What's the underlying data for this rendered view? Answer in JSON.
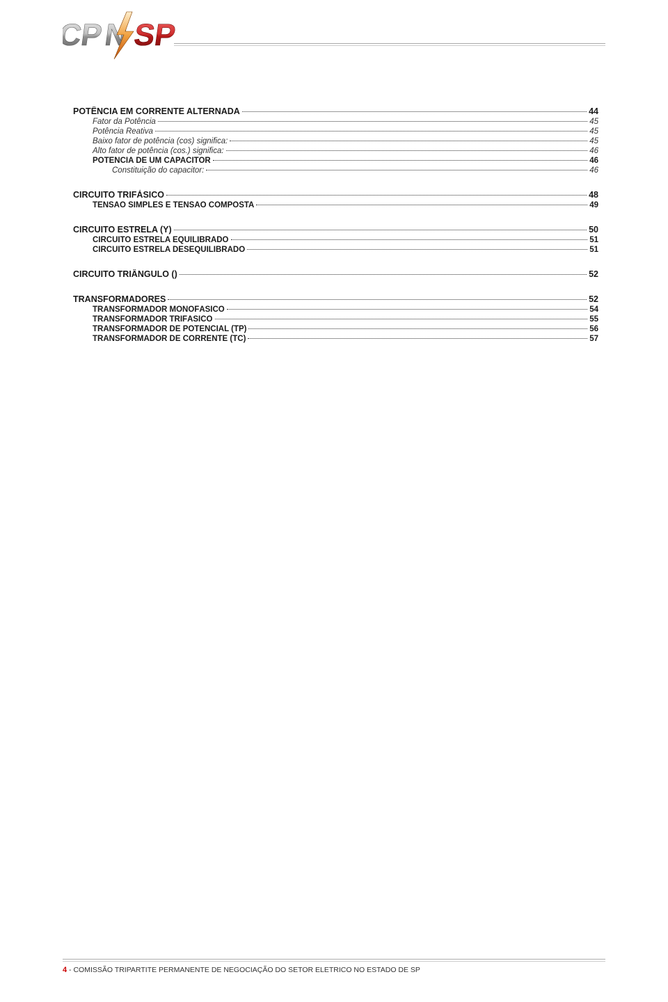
{
  "header": {
    "logo": {
      "letters_left": "CP",
      "letters_mid": "N",
      "letters_right": "SP",
      "left_color_top": "#d0d0d0",
      "left_color_bottom": "#808080",
      "mid_accent": "#f07030",
      "right_color_top": "#e04040",
      "right_color_bottom": "#901010"
    }
  },
  "toc": [
    {
      "level": "level1",
      "label": "POTÊNCIA EM CORRENTE ALTERNADA",
      "page": "44",
      "gap": false
    },
    {
      "level": "level2-italic",
      "label": "Fator da Potência",
      "page": "45",
      "gap": false
    },
    {
      "level": "level2-italic",
      "label": "Potência Reativa",
      "page": "45",
      "gap": false
    },
    {
      "level": "level2-italic",
      "label": "Baixo fator de potência (cos) significa:",
      "page": "45",
      "gap": false
    },
    {
      "level": "level2-italic",
      "label": "Alto fator de potência (cos.) significa:",
      "page": "46",
      "gap": false
    },
    {
      "level": "level2",
      "label": "POTÊNCIA DE UM CAPACITOR",
      "page": "46",
      "gap": false
    },
    {
      "level": "level3-italic",
      "label": "Constituição do capacitor:",
      "page": "46",
      "gap": false
    },
    {
      "level": "level1",
      "label": "CIRCUITO TRIFÁSICO",
      "page": "48",
      "gap": true
    },
    {
      "level": "level2",
      "label": "TENSÃO SIMPLES E TENSÃO COMPOSTA",
      "page": "49",
      "gap": false
    },
    {
      "level": "level1",
      "label": "CIRCUITO ESTRELA (Y)",
      "page": "50",
      "gap": true
    },
    {
      "level": "level2",
      "label": "CIRCUITO ESTRELA EQUILIBRADO",
      "page": "51",
      "gap": false
    },
    {
      "level": "level2",
      "label": "CIRCUITO ESTRELA DESEQUILIBRADO",
      "page": "51",
      "gap": false
    },
    {
      "level": "level1",
      "label": "CIRCUITO TRIÂNGULO ()",
      "page": "52",
      "gap": true
    },
    {
      "level": "level1",
      "label": "TRANSFORMADORES",
      "page": "52",
      "gap": true
    },
    {
      "level": "level2",
      "label": "TRANSFORMADOR MONOFÁSICO",
      "page": "54",
      "gap": false
    },
    {
      "level": "level2",
      "label": "TRANSFORMADOR TRIFÁSICO",
      "page": "55",
      "gap": false
    },
    {
      "level": "level2",
      "label": "TRANSFORMADOR DE POTENCIAL (TP)",
      "page": "56",
      "gap": false
    },
    {
      "level": "level2",
      "label": "TRANSFORMADOR DE CORRENTE (TC)",
      "page": "57",
      "gap": false
    }
  ],
  "footer": {
    "page_number": "4",
    "separator": " - ",
    "text": "COMISSÃO TRIPARTITE PERMANENTE DE NEGOCIAÇÃO DO SETOR ELETRICO NO ESTADO DE SP"
  }
}
